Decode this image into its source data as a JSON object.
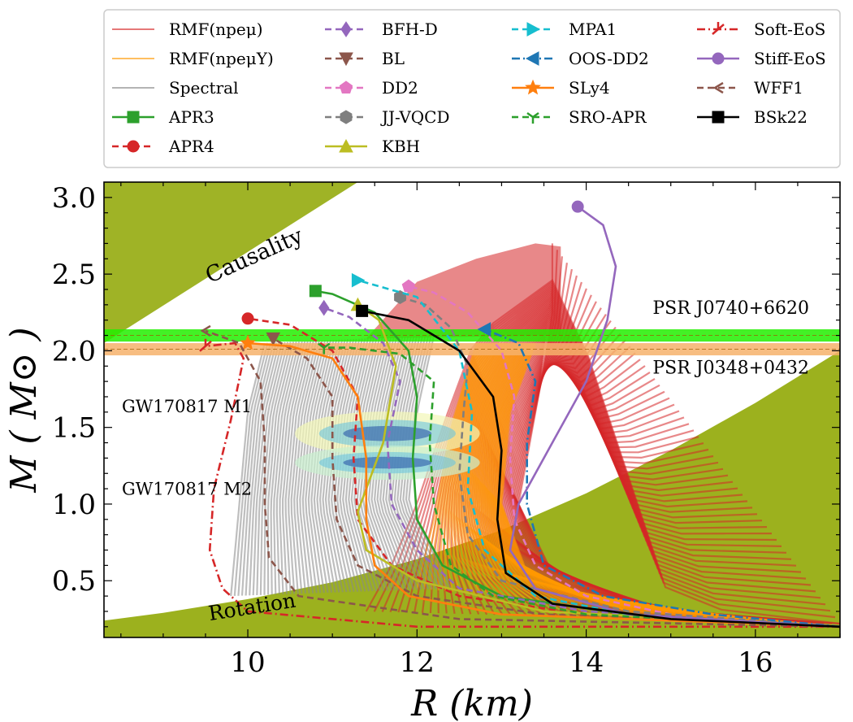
{
  "chart_data": {
    "type": "line",
    "title": "",
    "xlabel": "R (km)",
    "ylabel": "M ( M⊙ )",
    "xlim": [
      8.3,
      17.0
    ],
    "ylim": [
      0.13,
      3.1
    ],
    "xticks": [
      10,
      12,
      14,
      16
    ],
    "yticks": [
      0.5,
      1.0,
      1.5,
      2.0,
      2.5,
      3.0
    ],
    "xtick_labels": [
      "10",
      "12",
      "14",
      "16"
    ],
    "ytick_labels": [
      "0.5",
      "1.0",
      "1.5",
      "2.0",
      "2.5",
      "3.0"
    ],
    "regions": {
      "causality_label": "Causality",
      "rotation_label": "Rotation",
      "causality_line": {
        "r": [
          8.3,
          11.3
        ],
        "m": [
          2.05,
          3.1
        ]
      },
      "rotation_curve": {
        "r": [
          8.3,
          9,
          10,
          11,
          12,
          13,
          14,
          15,
          16,
          17
        ],
        "m": [
          0.24,
          0.29,
          0.38,
          0.49,
          0.64,
          0.83,
          1.07,
          1.35,
          1.66,
          2.0
        ]
      }
    },
    "bands": [
      {
        "name": "PSR J0740+6620",
        "low": 2.06,
        "high": 2.14,
        "color": "#22ee00"
      },
      {
        "name": "PSR J0348+0432",
        "low": 1.97,
        "high": 2.05,
        "color": "#f6b26b"
      }
    ],
    "gw_labels": [
      "GW170817 M1",
      "GW170817 M2"
    ],
    "gw_posteriors": [
      {
        "name": "GW170817 M1",
        "r_range": [
          10.7,
          12.6
        ],
        "m_center": 1.46,
        "m_half": 0.09
      },
      {
        "name": "GW170817 M2",
        "r_range": [
          10.7,
          12.6
        ],
        "m_center": 1.27,
        "m_half": 0.07
      }
    ],
    "envelopes": [
      {
        "name": "RMF(npeμ)",
        "color": "#d62728",
        "left": {
          "r": [
            11.4,
            11.7,
            12.0,
            12.3,
            12.7,
            13.7,
            15.0,
            17.0
          ],
          "m": [
            0.3,
            0.6,
            1.0,
            1.5,
            2.1,
            2.5,
            0.35,
            0.22
          ]
        },
        "right": {
          "r": [
            13.6,
            13.6,
            13.4,
            13.2,
            13.6,
            15.0,
            17.0
          ],
          "m": [
            2.7,
            2.2,
            1.6,
            1.0,
            0.55,
            0.3,
            0.22
          ]
        },
        "top_left": {
          "r": [
            11.4,
            12.0,
            12.7,
            13.4,
            13.7
          ],
          "m": [
            2.08,
            2.45,
            2.6,
            2.7,
            2.68
          ]
        }
      },
      {
        "name": "RMF(npeμY)",
        "color": "#ff9900",
        "left": {
          "r": [
            12.0,
            12.2,
            12.4,
            12.7
          ],
          "m": [
            0.45,
            0.9,
            1.5,
            2.05
          ]
        },
        "right": {
          "r": [
            13.4,
            13.1,
            13.0,
            13.3,
            14.5,
            17.0
          ],
          "m": [
            2.05,
            1.6,
            1.0,
            0.55,
            0.3,
            0.2
          ]
        }
      },
      {
        "name": "Spectral",
        "color": "#888888",
        "left": {
          "r": [
            9.8,
            9.9,
            10.0,
            10.2
          ],
          "m": [
            0.4,
            1.0,
            1.6,
            2.05
          ]
        },
        "right": {
          "r": [
            12.2,
            12.0,
            11.9,
            12.4
          ],
          "m": [
            2.1,
            1.6,
            1.0,
            0.45
          ]
        }
      }
    ],
    "legend": {
      "placement": "top",
      "entries": [
        "RMF(npeμ)",
        "RMF(npeμY)",
        "Spectral",
        "APR3",
        "APR4",
        "BFH-D",
        "BL",
        "DD2",
        "JJ-VQCD",
        "KBH",
        "MPA1",
        "OOS-DD2",
        "SLy4",
        "SRO-APR",
        "Soft-EoS",
        "Stiff-EoS",
        "WFF1",
        "BSk22"
      ]
    },
    "series": [
      {
        "name": "APR3",
        "color": "#2ca02c",
        "dash": "solid",
        "marker": "square",
        "r": [
          17.0,
          14.5,
          13.0,
          12.3,
          12.0,
          11.95,
          12.0,
          11.9,
          11.5,
          11.0,
          10.8
        ],
        "m": [
          0.2,
          0.28,
          0.4,
          0.6,
          0.9,
          1.3,
          1.7,
          2.0,
          2.25,
          2.37,
          2.39
        ]
      },
      {
        "name": "APR4",
        "color": "#d62728",
        "dash": "8,5",
        "marker": "circle",
        "r": [
          17.0,
          14.0,
          12.5,
          11.7,
          11.3,
          11.25,
          11.3,
          11.0,
          10.5,
          10.0
        ],
        "m": [
          0.2,
          0.28,
          0.4,
          0.6,
          0.9,
          1.3,
          1.7,
          2.0,
          2.17,
          2.21
        ]
      },
      {
        "name": "BFH-D",
        "color": "#9467bd",
        "dash": "8,5",
        "marker": "diamond",
        "r": [
          17.0,
          14.0,
          12.5,
          12.0,
          11.7,
          11.65,
          11.8,
          11.6,
          11.2,
          10.9
        ],
        "m": [
          0.2,
          0.3,
          0.45,
          0.7,
          1.0,
          1.4,
          1.8,
          2.05,
          2.22,
          2.28
        ]
      },
      {
        "name": "BL",
        "color": "#8c564b",
        "dash": "8,5",
        "marker": "triangle-down",
        "r": [
          17.0,
          13.5,
          12.0,
          11.3,
          11.05,
          11.0,
          11.0,
          10.7,
          10.3
        ],
        "m": [
          0.2,
          0.28,
          0.4,
          0.6,
          0.9,
          1.3,
          1.7,
          1.95,
          2.08
        ]
      },
      {
        "name": "DD2",
        "color": "#e377c2",
        "dash": "8,5",
        "marker": "pentagon",
        "r": [
          17.0,
          15.0,
          14.0,
          13.4,
          13.15,
          13.1,
          13.15,
          13.0,
          12.6,
          12.2,
          11.9
        ],
        "m": [
          0.2,
          0.28,
          0.4,
          0.6,
          0.9,
          1.3,
          1.7,
          2.0,
          2.25,
          2.38,
          2.42
        ]
      },
      {
        "name": "JJ-VQCD",
        "color": "#7f7f7f",
        "dash": "8,5",
        "marker": "hexagon",
        "r": [
          17.0,
          14.5,
          13.0,
          12.6,
          12.5,
          12.55,
          12.6,
          12.4,
          12.1,
          11.8
        ],
        "m": [
          0.2,
          0.3,
          0.5,
          0.8,
          1.2,
          1.6,
          1.9,
          2.15,
          2.3,
          2.35
        ]
      },
      {
        "name": "KBH",
        "color": "#bcbd22",
        "dash": "solid",
        "marker": "triangle-up",
        "r": [
          17.0,
          13.5,
          12.0,
          11.4,
          11.3,
          11.6,
          11.75,
          11.55,
          11.3
        ],
        "m": [
          0.2,
          0.3,
          0.5,
          0.7,
          0.95,
          1.4,
          1.9,
          2.2,
          2.3
        ]
      },
      {
        "name": "MPA1",
        "color": "#17becf",
        "dash": "8,5",
        "marker": "triangle-right",
        "r": [
          17.0,
          14.5,
          13.4,
          12.8,
          12.6,
          12.65,
          12.5,
          12.0,
          11.3
        ],
        "m": [
          0.2,
          0.28,
          0.4,
          0.7,
          1.1,
          1.6,
          2.0,
          2.35,
          2.46
        ]
      },
      {
        "name": "OOS-DD2",
        "color": "#1f77b4",
        "dash": "10,4,2,4",
        "marker": "triangle-left",
        "r": [
          17.0,
          15.5,
          14.2,
          13.5,
          13.3,
          13.3,
          13.4,
          13.2,
          12.8
        ],
        "m": [
          0.2,
          0.28,
          0.4,
          0.6,
          1.0,
          1.4,
          1.8,
          2.05,
          2.14
        ]
      },
      {
        "name": "SLy4",
        "color": "#ff7f0e",
        "dash": "solid",
        "marker": "star",
        "r": [
          17.0,
          13.0,
          11.9,
          11.5,
          11.4,
          11.4,
          11.3,
          11.0,
          10.5,
          10.0
        ],
        "m": [
          0.2,
          0.28,
          0.4,
          0.6,
          0.9,
          1.3,
          1.7,
          1.95,
          2.03,
          2.05
        ]
      },
      {
        "name": "SRO-APR",
        "color": "#2ca02c",
        "dash": "8,5",
        "marker": "tri",
        "r": [
          17.0,
          14.0,
          12.9,
          12.4,
          12.2,
          12.15,
          12.2,
          11.8,
          11.2,
          10.9
        ],
        "m": [
          0.2,
          0.28,
          0.4,
          0.6,
          1.0,
          1.4,
          1.8,
          1.98,
          2.02,
          2.02
        ]
      },
      {
        "name": "Soft-EoS",
        "color": "#d62728",
        "dash": "10,4,2,4",
        "marker": "tick",
        "r": [
          17.0,
          12.0,
          10.0,
          9.7,
          9.55,
          9.6,
          9.8,
          9.95,
          9.85,
          9.5
        ],
        "m": [
          0.2,
          0.2,
          0.3,
          0.45,
          0.7,
          1.1,
          1.55,
          1.95,
          2.05,
          2.03
        ]
      },
      {
        "name": "Stiff-EoS",
        "color": "#9467bd",
        "dash": "solid",
        "marker": "circle",
        "r": [
          17.0,
          14.5,
          13.4,
          13.1,
          13.2,
          13.6,
          14.0,
          14.25,
          14.35,
          14.2,
          13.9
        ],
        "m": [
          0.2,
          0.28,
          0.45,
          0.7,
          1.0,
          1.4,
          1.8,
          2.2,
          2.55,
          2.82,
          2.94
        ]
      },
      {
        "name": "WFF1",
        "color": "#8c564b",
        "dash": "8,5",
        "marker": "left-tick",
        "r": [
          17.0,
          12.5,
          10.6,
          10.25,
          10.2,
          10.2,
          10.15,
          9.9,
          9.5
        ],
        "m": [
          0.2,
          0.25,
          0.4,
          0.65,
          1.0,
          1.4,
          1.8,
          2.05,
          2.13
        ]
      },
      {
        "name": "BSk22",
        "color": "#000000",
        "dash": "solid",
        "marker": "square",
        "r": [
          17.0,
          15.0,
          13.6,
          13.05,
          12.95,
          13.0,
          12.9,
          12.5,
          11.9,
          11.35
        ],
        "m": [
          0.2,
          0.25,
          0.35,
          0.55,
          0.9,
          1.35,
          1.7,
          2.0,
          2.2,
          2.26
        ]
      }
    ],
    "grid": false
  }
}
